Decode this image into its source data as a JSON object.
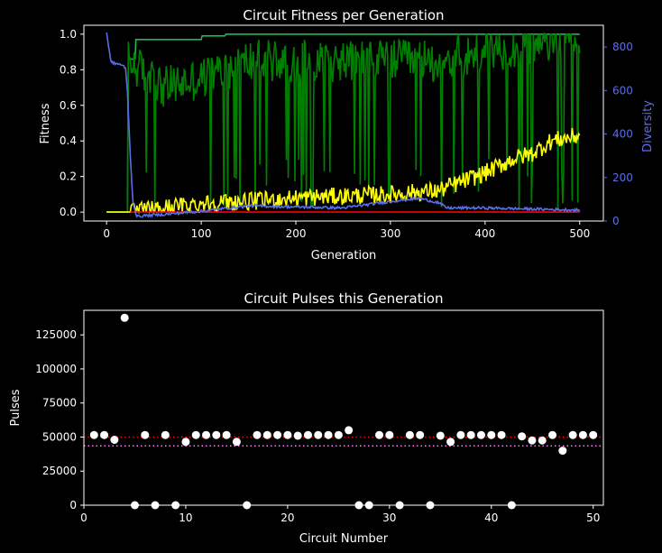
{
  "colors": {
    "background": "#000000",
    "axes": "#ffffff",
    "best_fitness": "#1db954",
    "fitness_spiky": "#008000",
    "mean_fitness": "#ffff00",
    "baseline": "#ff0000",
    "diversity": "#5a6ee8",
    "scatter_points": "#ffffff",
    "red_line": "#ff0000",
    "magenta_line": "#ee82ee"
  },
  "chart_data": [
    {
      "type": "line",
      "title": "Circuit Fitness per Generation",
      "xlabel": "Generation",
      "ylabel": "Fitness",
      "y2label": "Diversity",
      "xlim": [
        -24,
        525
      ],
      "ylim": [
        -0.05,
        1.05
      ],
      "y2lim": [
        0,
        900
      ],
      "xticks": [
        0,
        100,
        200,
        300,
        400,
        500
      ],
      "yticks": [
        0.0,
        0.2,
        0.4,
        0.6,
        0.8,
        1.0
      ],
      "y2ticks": [
        0,
        200,
        400,
        600,
        800
      ],
      "xtick_labels": [
        "0",
        "100",
        "200",
        "300",
        "400",
        "500"
      ],
      "ytick_labels": [
        "0.0",
        "0.2",
        "0.4",
        "0.6",
        "0.8",
        "1.0"
      ],
      "y2tick_labels": [
        "0",
        "200",
        "400",
        "600",
        "800"
      ],
      "series": [
        {
          "color": "best_fitness",
          "axis": "left",
          "kind": "step",
          "x": [
            0,
            22,
            23,
            30,
            31,
            100,
            101,
            125,
            126,
            500
          ],
          "values": [
            0.0,
            0.0,
            0.86,
            0.86,
            0.97,
            0.97,
            0.99,
            0.99,
            1.0,
            1.0
          ]
        },
        {
          "color": "fitness_spiky",
          "axis": "left",
          "kind": "noisy",
          "x": [
            0,
            22,
            23,
            60,
            100,
            150,
            200,
            250,
            300,
            350,
            400,
            450,
            500
          ],
          "values": [
            0.0,
            0.0,
            0.85,
            0.7,
            0.75,
            0.85,
            0.85,
            0.85,
            0.85,
            0.85,
            0.9,
            0.95,
            1.0
          ],
          "noise_amplitude": 0.12,
          "dip_probability": 0.1
        },
        {
          "color": "mean_fitness",
          "axis": "left",
          "kind": "noisy",
          "x": [
            0,
            25,
            100,
            150,
            200,
            250,
            300,
            350,
            400,
            430,
            450,
            470,
            500
          ],
          "values": [
            0.0,
            0.0,
            0.05,
            0.06,
            0.08,
            0.09,
            0.1,
            0.12,
            0.22,
            0.3,
            0.33,
            0.4,
            0.43
          ],
          "noise_amplitude": 0.05
        },
        {
          "color": "baseline",
          "axis": "left",
          "kind": "line",
          "x": [
            25,
            500
          ],
          "values": [
            0.0,
            0.0
          ]
        },
        {
          "color": "diversity",
          "axis": "right",
          "kind": "noisy",
          "x": [
            0,
            2,
            5,
            8,
            15,
            18,
            20,
            22,
            25,
            28,
            32,
            40,
            60,
            100,
            150,
            200,
            250,
            300,
            330,
            350,
            360,
            400,
            450,
            500
          ],
          "values": [
            870,
            800,
            730,
            725,
            720,
            710,
            700,
            600,
            300,
            80,
            20,
            25,
            30,
            45,
            70,
            65,
            60,
            90,
            105,
            85,
            60,
            60,
            55,
            50
          ],
          "noise_amplitude": 6
        }
      ]
    },
    {
      "type": "scatter",
      "title": "Circuit Pulses this Generation",
      "xlabel": "Circuit Number",
      "ylabel": "Pulses",
      "xlim": [
        0,
        51
      ],
      "ylim": [
        0,
        143000
      ],
      "xticks": [
        0,
        10,
        20,
        30,
        40,
        50
      ],
      "yticks": [
        0,
        25000,
        50000,
        75000,
        100000,
        125000
      ],
      "xtick_labels": [
        "0",
        "10",
        "20",
        "30",
        "40",
        "50"
      ],
      "ytick_labels": [
        "0",
        "25000",
        "50000",
        "75000",
        "100000",
        "125000"
      ],
      "x": [
        1,
        2,
        3,
        4,
        5,
        6,
        7,
        8,
        9,
        10,
        11,
        12,
        13,
        14,
        15,
        16,
        17,
        18,
        19,
        20,
        21,
        22,
        23,
        24,
        25,
        26,
        27,
        28,
        29,
        30,
        31,
        32,
        33,
        34,
        35,
        36,
        37,
        38,
        39,
        40,
        41,
        42,
        43,
        44,
        45,
        46,
        47,
        48,
        49,
        50
      ],
      "values": [
        51500,
        51500,
        48000,
        137500,
        0,
        51500,
        0,
        51500,
        0,
        46500,
        51500,
        51500,
        51500,
        51500,
        46500,
        0,
        51500,
        51500,
        51500,
        51500,
        51000,
        51500,
        51500,
        51500,
        51500,
        55000,
        0,
        0,
        51500,
        51500,
        0,
        51500,
        51500,
        0,
        51000,
        46500,
        51500,
        51500,
        51500,
        51500,
        51500,
        0,
        50500,
        47500,
        47500,
        51500,
        40000,
        51500,
        51500,
        51500
      ],
      "hlines": [
        {
          "y": 50000,
          "color": "red_line",
          "style": "dotted"
        },
        {
          "y": 43500,
          "color": "magenta_line",
          "style": "dotted"
        }
      ]
    }
  ]
}
